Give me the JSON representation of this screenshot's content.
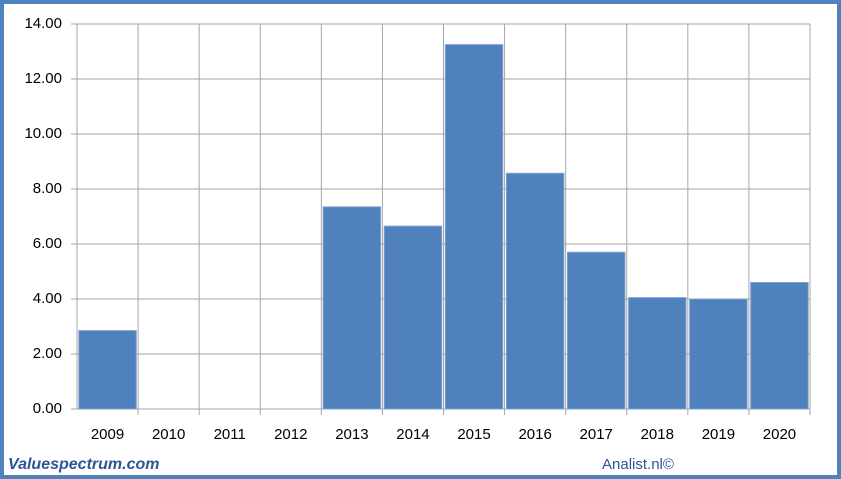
{
  "chart_data": {
    "type": "bar",
    "categories": [
      "2009",
      "2010",
      "2011",
      "2012",
      "2013",
      "2014",
      "2015",
      "2016",
      "2017",
      "2018",
      "2019",
      "2020"
    ],
    "values": [
      2.85,
      null,
      null,
      null,
      7.35,
      6.65,
      13.25,
      8.57,
      5.7,
      4.05,
      4.0,
      4.6
    ],
    "color": "#4f81bd",
    "ylim": [
      0,
      14
    ],
    "yticks": [
      {
        "value": 0,
        "label": "0.00"
      },
      {
        "value": 2,
        "label": "2.00"
      },
      {
        "value": 4,
        "label": "4.00"
      },
      {
        "value": 6,
        "label": "6.00"
      },
      {
        "value": 8,
        "label": "8.00"
      },
      {
        "value": 10,
        "label": "10.00"
      },
      {
        "value": 12,
        "label": "12.00"
      },
      {
        "value": 14,
        "label": "14.00"
      }
    ],
    "grid": true
  },
  "footer": {
    "left": "Valuespectrum.com",
    "right": "Analist.nl©"
  }
}
